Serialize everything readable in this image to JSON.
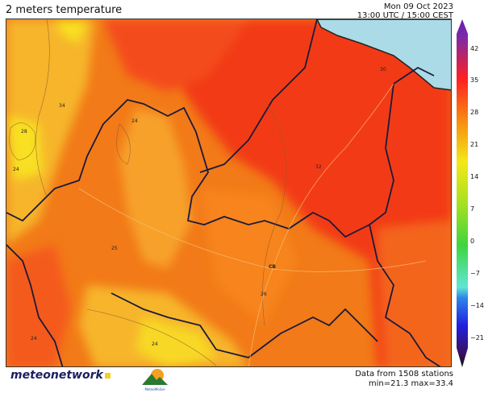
{
  "header": {
    "title": "2 meters temperature",
    "date": "Mon 09 Oct 2023",
    "time": "13:00 UTC / 15:00 CEST"
  },
  "colorbar": {
    "ticks": [
      "42",
      "35",
      "28",
      "21",
      "14",
      "7",
      "0",
      "−7",
      "−14",
      "−21"
    ],
    "colors": {
      "max": "#6a1fb0",
      "35": "#ff2020",
      "28": "#f78a10",
      "21": "#f4e818",
      "14": "#a6e020",
      "7": "#3fd43f",
      "0": "#5fe6d4",
      "-7": "#2f86e8",
      "-14": "#2020e0",
      "-21": "#3a1060",
      "min": "#111111"
    }
  },
  "map": {
    "contour_labels": [
      "34",
      "28",
      "24",
      "24",
      "24",
      "25",
      "32",
      "30",
      "26",
      "24"
    ],
    "city_label": "CB",
    "sea_color": "#aadbe6"
  },
  "footer": {
    "brand": "meteonetwork",
    "partner_logo": "MeteoMolise",
    "stations": "Data from 1508 stations",
    "minmax": "min=21.3 max=33.4"
  }
}
